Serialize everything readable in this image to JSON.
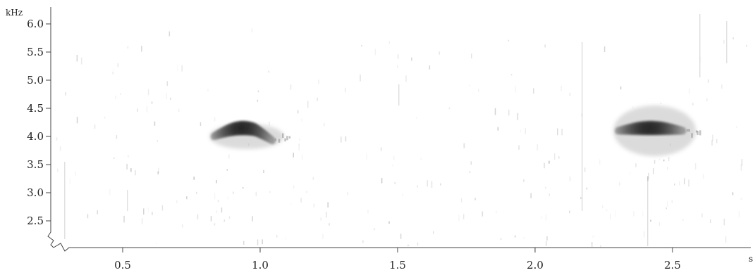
{
  "chart_data": {
    "type": "heatmap",
    "title": "",
    "xlabel": "s",
    "ylabel": "kHz",
    "xlim": [
      0.25,
      2.8
    ],
    "ylim": [
      2.05,
      6.3
    ],
    "grid": false,
    "x_ticks": [
      {
        "value": 0.5,
        "label": "0.5"
      },
      {
        "value": 1.0,
        "label": "1.0"
      },
      {
        "value": 1.5,
        "label": "1.5"
      },
      {
        "value": 2.0,
        "label": "2.0"
      },
      {
        "value": 2.5,
        "label": "2.5"
      }
    ],
    "y_ticks": [
      {
        "value": 2.5,
        "label": "2.5"
      },
      {
        "value": 3.0,
        "label": "3.0"
      },
      {
        "value": 3.5,
        "label": "3.5"
      },
      {
        "value": 4.0,
        "label": "4.0"
      },
      {
        "value": 4.5,
        "label": "4.5"
      },
      {
        "value": 5.0,
        "label": "5.0"
      },
      {
        "value": 5.5,
        "label": "5.5"
      },
      {
        "value": 6.0,
        "label": "6.0"
      }
    ],
    "calls": [
      {
        "t_start": 0.83,
        "t_end": 1.1,
        "freq_center_khz": 4.0,
        "freq_spread_khz": 0.3,
        "shape": "arch"
      },
      {
        "t_start": 2.3,
        "t_end": 2.6,
        "freq_center_khz": 4.1,
        "freq_spread_khz": 0.6,
        "shape": "flat"
      }
    ],
    "color_scale": {
      "low": "#ffffff",
      "high": "#111111"
    }
  }
}
